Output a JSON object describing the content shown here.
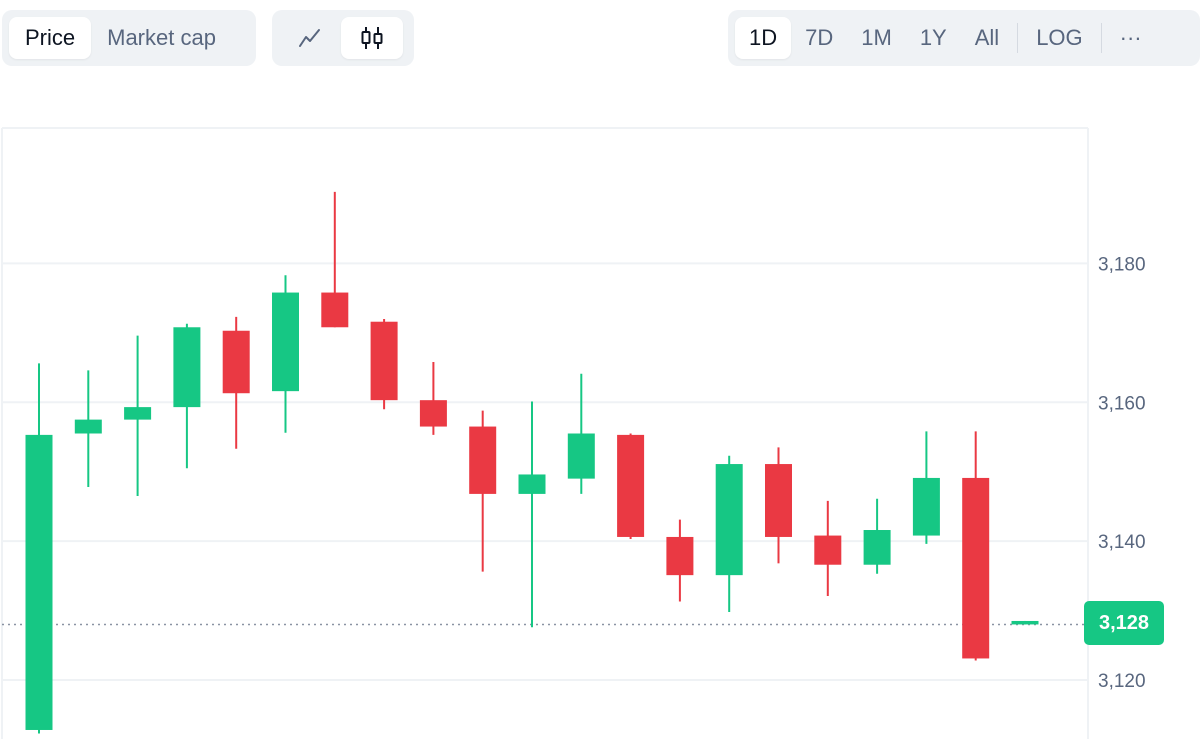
{
  "toolbar": {
    "metric_tabs": [
      {
        "label": "Price",
        "active": true
      },
      {
        "label": "Market cap",
        "active": false
      }
    ],
    "chart_type_buttons": [
      {
        "icon": "line-chart-icon",
        "active": false
      },
      {
        "icon": "candlestick-icon",
        "active": true
      }
    ],
    "ranges": [
      {
        "label": "1D",
        "active": true
      },
      {
        "label": "7D",
        "active": false
      },
      {
        "label": "1M",
        "active": false
      },
      {
        "label": "1Y",
        "active": false
      },
      {
        "label": "All",
        "active": false
      }
    ],
    "log_label": "LOG",
    "more_label": "···"
  },
  "current_price": {
    "label": "3,128",
    "value": 3128
  },
  "colors": {
    "up": "#16c784",
    "down": "#ea3943",
    "grid": "#eff2f5",
    "axis_text": "#58667e",
    "current_line": "#8a93a3"
  },
  "chart_data": {
    "type": "candlestick",
    "title": "",
    "xlabel": "",
    "ylabel": "",
    "ylim": [
      3111.5,
      3199.5
    ],
    "yticks": [
      {
        "value": 3120,
        "label": "3,120"
      },
      {
        "value": 3140,
        "label": "3,140"
      },
      {
        "value": 3160,
        "label": "3,160"
      },
      {
        "value": 3180,
        "label": "3,180"
      }
    ],
    "grid": true,
    "candles": [
      {
        "open": 3112.8,
        "close": 3155.3,
        "high": 3165.6,
        "low": 3112.3
      },
      {
        "open": 3155.5,
        "close": 3157.5,
        "high": 3164.6,
        "low": 3147.8
      },
      {
        "open": 3157.5,
        "close": 3159.3,
        "high": 3169.6,
        "low": 3146.5
      },
      {
        "open": 3159.3,
        "close": 3170.8,
        "high": 3171.3,
        "low": 3150.5
      },
      {
        "open": 3170.3,
        "close": 3161.3,
        "high": 3172.3,
        "low": 3153.3
      },
      {
        "open": 3161.6,
        "close": 3175.8,
        "high": 3178.3,
        "low": 3155.6
      },
      {
        "open": 3175.8,
        "close": 3170.8,
        "high": 3190.3,
        "low": 3170.8
      },
      {
        "open": 3171.6,
        "close": 3160.3,
        "high": 3172.0,
        "low": 3159.0
      },
      {
        "open": 3160.3,
        "close": 3156.5,
        "high": 3165.8,
        "low": 3155.3
      },
      {
        "open": 3156.5,
        "close": 3146.8,
        "high": 3158.8,
        "low": 3135.6
      },
      {
        "open": 3146.8,
        "close": 3149.6,
        "high": 3160.1,
        "low": 3127.6
      },
      {
        "open": 3149.0,
        "close": 3155.5,
        "high": 3164.1,
        "low": 3146.8
      },
      {
        "open": 3155.3,
        "close": 3140.6,
        "high": 3155.5,
        "low": 3140.3
      },
      {
        "open": 3140.6,
        "close": 3135.1,
        "high": 3143.1,
        "low": 3131.3
      },
      {
        "open": 3135.1,
        "close": 3151.1,
        "high": 3152.3,
        "low": 3129.8
      },
      {
        "open": 3151.1,
        "close": 3140.6,
        "high": 3153.5,
        "low": 3136.8
      },
      {
        "open": 3140.8,
        "close": 3136.6,
        "high": 3145.8,
        "low": 3132.1
      },
      {
        "open": 3136.6,
        "close": 3141.6,
        "high": 3146.1,
        "low": 3135.3
      },
      {
        "open": 3140.8,
        "close": 3149.1,
        "high": 3155.8,
        "low": 3139.6
      },
      {
        "open": 3149.1,
        "close": 3123.1,
        "high": 3155.8,
        "low": 3122.8
      },
      {
        "open": 3128.0,
        "close": 3128.5,
        "high": 3128.5,
        "low": 3128.0
      }
    ]
  }
}
